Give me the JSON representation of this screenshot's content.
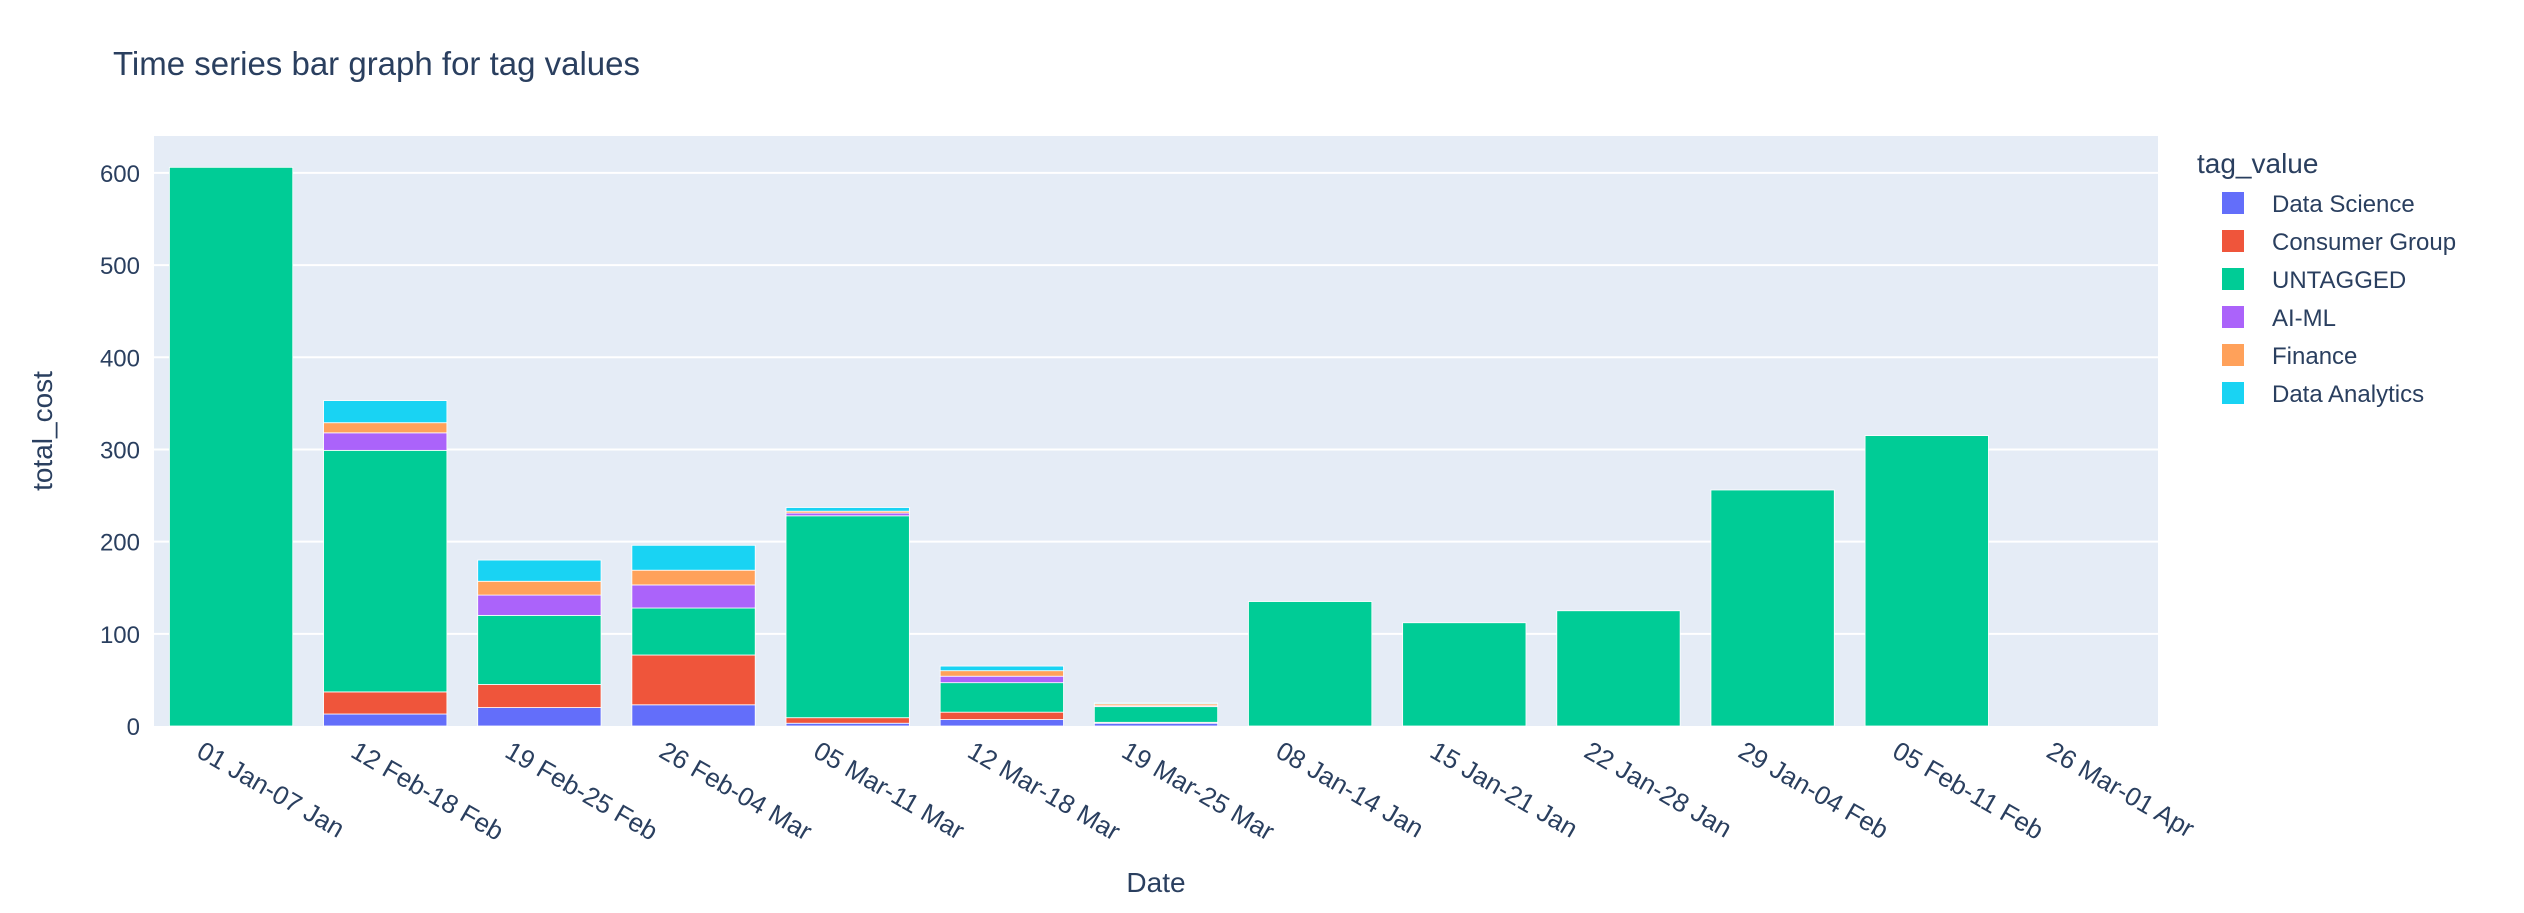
{
  "chart_data": {
    "type": "bar",
    "stacked": true,
    "title": "Time series bar graph for tag values",
    "xlabel": "Date",
    "ylabel": "total_cost",
    "ylim": [
      0,
      640
    ],
    "yticks": [
      0,
      100,
      200,
      300,
      400,
      500,
      600
    ],
    "grid": true,
    "legend_title": "tag_value",
    "legend_position": "right",
    "categories": [
      "01 Jan-07 Jan",
      "12 Feb-18 Feb",
      "19 Feb-25 Feb",
      "26 Feb-04 Mar",
      "05 Mar-11 Mar",
      "12 Mar-18 Mar",
      "19 Mar-25 Mar",
      "08 Jan-14 Jan",
      "15 Jan-21 Jan",
      "22 Jan-28 Jan",
      "29 Jan-04 Feb",
      "05 Feb-11 Feb",
      "26 Mar-01 Apr"
    ],
    "series": [
      {
        "name": "Data Science",
        "color": "#636efa",
        "values": [
          0,
          13,
          20,
          23,
          3,
          7,
          3,
          0,
          0,
          0,
          0,
          0,
          0
        ]
      },
      {
        "name": "Consumer Group",
        "color": "#ef553b",
        "values": [
          0,
          24,
          25,
          54,
          6,
          8,
          1,
          0,
          0,
          0,
          0,
          0,
          0
        ]
      },
      {
        "name": "UNTAGGED",
        "color": "#00cc96",
        "values": [
          606,
          262,
          75,
          51,
          219,
          32,
          17,
          135,
          112,
          125,
          256,
          315,
          0
        ]
      },
      {
        "name": "AI-ML",
        "color": "#ab63fa",
        "values": [
          0,
          19,
          22,
          25,
          3,
          7,
          1,
          0,
          0,
          0,
          0,
          0,
          0
        ]
      },
      {
        "name": "Finance",
        "color": "#ffa15a",
        "values": [
          0,
          11,
          15,
          16,
          2,
          6,
          2,
          0,
          0,
          0,
          0,
          0,
          0
        ]
      },
      {
        "name": "Data Analytics",
        "color": "#19d3f3",
        "values": [
          0,
          24,
          23,
          27,
          4,
          5,
          1,
          0,
          0,
          0,
          0,
          0,
          0
        ]
      }
    ]
  }
}
